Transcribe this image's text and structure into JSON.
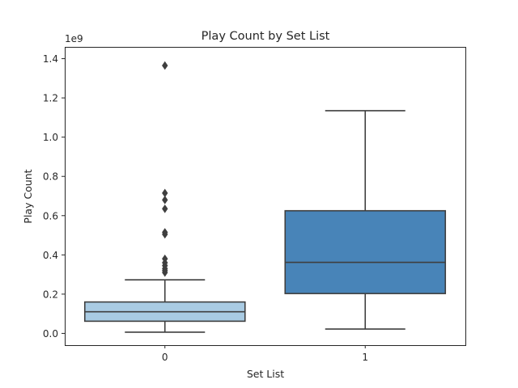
{
  "chart_data": {
    "type": "box",
    "title": "Play Count by Set List",
    "xlabel": "Set List",
    "ylabel": "Play Count",
    "y_offset_label": "1e9",
    "y_scale": 1000000000,
    "ylim": [
      -0.06,
      1.46
    ],
    "yticks": [
      0.0,
      0.2,
      0.4,
      0.6,
      0.8,
      1.0,
      1.2,
      1.4
    ],
    "ytick_labels": [
      "0.0",
      "0.2",
      "0.4",
      "0.6",
      "0.8",
      "1.0",
      "1.2",
      "1.4"
    ],
    "categories": [
      "0",
      "1"
    ],
    "grid": false,
    "legend": "none",
    "boxes": [
      {
        "category": "0",
        "whisker_low": 0.006,
        "q1": 0.062,
        "median": 0.11,
        "q3": 0.16,
        "whisker_high": 0.273,
        "outliers": [
          0.31,
          0.32,
          0.33,
          0.345,
          0.36,
          0.38,
          0.505,
          0.515,
          0.635,
          0.68,
          0.715,
          1.365
        ],
        "color": "#a9cbe3"
      },
      {
        "category": "1",
        "whisker_low": 0.022,
        "q1": 0.203,
        "median": 0.362,
        "q3": 0.625,
        "whisker_high": 1.135,
        "outliers": [],
        "color": "#4884b8"
      }
    ],
    "line_color": "#3f3f3f"
  }
}
